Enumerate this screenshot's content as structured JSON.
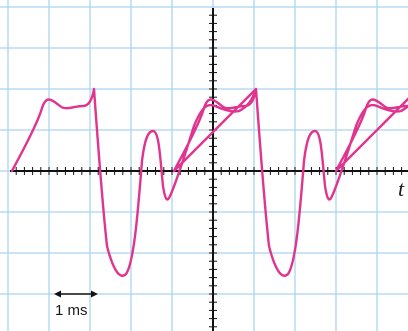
{
  "scope": {
    "x_axis_label": "t",
    "scale_bar_label": "1 ms",
    "colors": {
      "grid": "#aad4ef",
      "axis": "#111111",
      "trace": "#e0358e",
      "background": "#ffffff"
    }
  }
}
